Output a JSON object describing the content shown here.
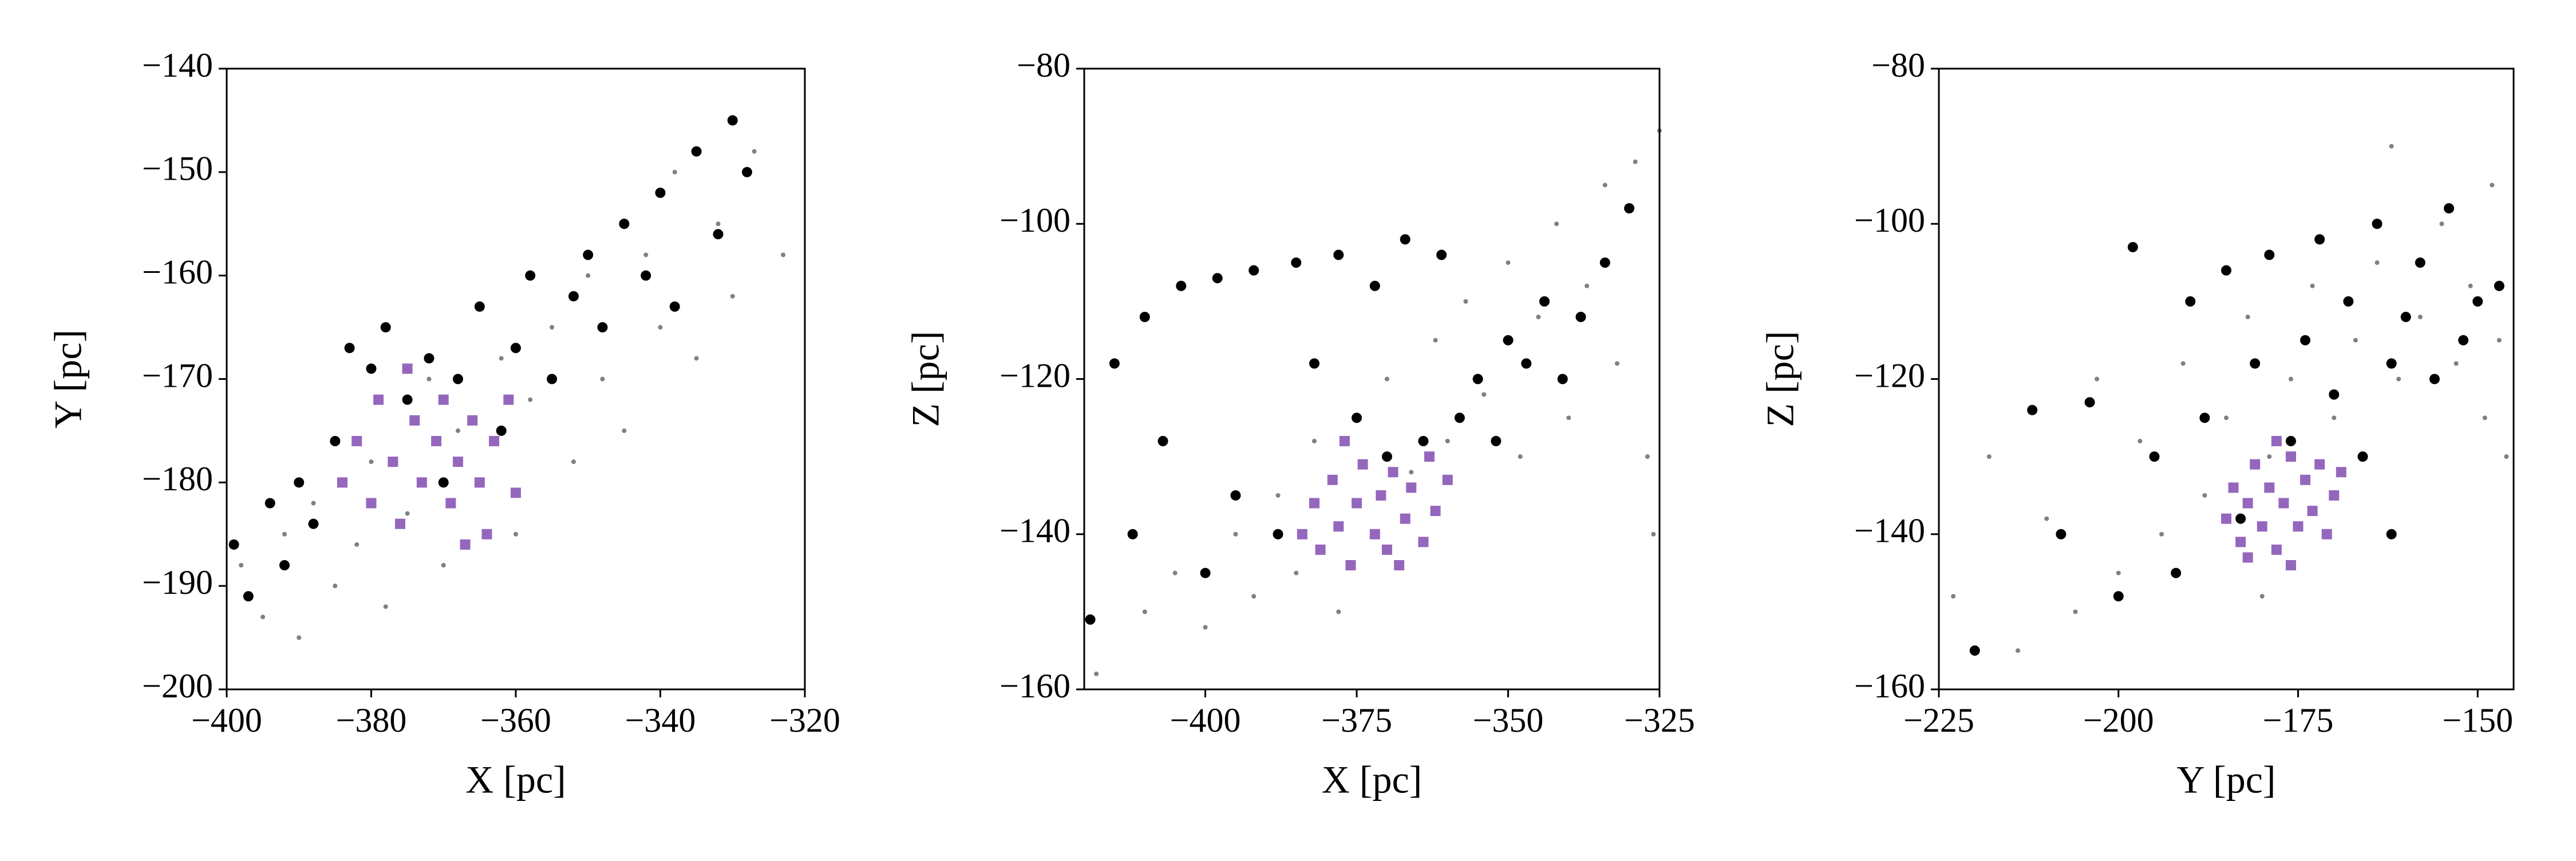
{
  "chart_data": [
    {
      "type": "scatter",
      "xlabel": "X [pc]",
      "ylabel": "Y [pc]",
      "xlim": [
        -400,
        -320
      ],
      "ylim": [
        -200,
        -140
      ],
      "xticks": [
        {
          "value": -400,
          "label": "−400"
        },
        {
          "value": -380,
          "label": "−380"
        },
        {
          "value": -360,
          "label": "−360"
        },
        {
          "value": -340,
          "label": "−340"
        },
        {
          "value": -320,
          "label": "−320"
        }
      ],
      "yticks": [
        {
          "value": -200,
          "label": "−200"
        },
        {
          "value": -190,
          "label": "−190"
        },
        {
          "value": -180,
          "label": "−180"
        },
        {
          "value": -170,
          "label": "−170"
        },
        {
          "value": -160,
          "label": "−160"
        },
        {
          "value": -150,
          "label": "−150"
        },
        {
          "value": -140,
          "label": "−140"
        }
      ],
      "series": [
        {
          "color": "#808080",
          "marker": "dot",
          "x": [
            -398,
            -395,
            -392,
            -390,
            -388,
            -385,
            -382,
            -380,
            -378,
            -375,
            -372,
            -370,
            -368,
            -365,
            -362,
            -360,
            -358,
            -355,
            -352,
            -350,
            -348,
            -345,
            -342,
            -340,
            -338,
            -335,
            -332,
            -330,
            -327,
            -323
          ],
          "y": [
            -188,
            -193,
            -185,
            -195,
            -182,
            -190,
            -186,
            -178,
            -192,
            -183,
            -170,
            -188,
            -175,
            -180,
            -168,
            -185,
            -172,
            -165,
            -178,
            -160,
            -170,
            -175,
            -158,
            -165,
            -150,
            -168,
            -155,
            -162,
            -148,
            -158
          ]
        },
        {
          "color": "#000000",
          "marker": "circle",
          "x": [
            -399,
            -397,
            -394,
            -392,
            -390,
            -388,
            -385,
            -383,
            -380,
            -378,
            -375,
            -372,
            -370,
            -368,
            -365,
            -362,
            -360,
            -358,
            -355,
            -352,
            -350,
            -348,
            -345,
            -342,
            -340,
            -338,
            -335,
            -332,
            -330,
            -328
          ],
          "y": [
            -186,
            -191,
            -182,
            -188,
            -180,
            -184,
            -176,
            -167,
            -169,
            -165,
            -172,
            -168,
            -180,
            -170,
            -163,
            -175,
            -167,
            -160,
            -170,
            -162,
            -158,
            -165,
            -155,
            -160,
            -152,
            -163,
            -148,
            -156,
            -145,
            -150
          ]
        },
        {
          "color": "#9467bd",
          "marker": "square",
          "x": [
            -384,
            -382,
            -380,
            -379,
            -377,
            -376,
            -374,
            -373,
            -371,
            -370,
            -369,
            -368,
            -366,
            -365,
            -364,
            -363,
            -361,
            -360,
            -367,
            -375
          ],
          "y": [
            -180,
            -176,
            -182,
            -172,
            -178,
            -184,
            -174,
            -180,
            -176,
            -172,
            -182,
            -178,
            -174,
            -180,
            -185,
            -176,
            -172,
            -181,
            -186,
            -169
          ]
        }
      ]
    },
    {
      "type": "scatter",
      "xlabel": "X [pc]",
      "ylabel": "Z [pc]",
      "xlim": [
        -420,
        -325
      ],
      "ylim": [
        -160,
        -80
      ],
      "xticks": [
        {
          "value": -400,
          "label": "−400"
        },
        {
          "value": -375,
          "label": "−375"
        },
        {
          "value": -350,
          "label": "−350"
        },
        {
          "value": -325,
          "label": "−325"
        }
      ],
      "yticks": [
        {
          "value": -160,
          "label": "−160"
        },
        {
          "value": -140,
          "label": "−140"
        },
        {
          "value": -120,
          "label": "−120"
        },
        {
          "value": -100,
          "label": "−100"
        },
        {
          "value": -80,
          "label": "−80"
        }
      ],
      "series": [
        {
          "color": "#808080",
          "marker": "dot",
          "x": [
            -418,
            -410,
            -405,
            -400,
            -395,
            -392,
            -388,
            -385,
            -382,
            -378,
            -375,
            -372,
            -370,
            -366,
            -362,
            -360,
            -357,
            -354,
            -350,
            -348,
            -345,
            -342,
            -340,
            -337,
            -334,
            -332,
            -329,
            -327,
            -325,
            -326
          ],
          "y": [
            -158,
            -150,
            -145,
            -152,
            -140,
            -148,
            -135,
            -145,
            -128,
            -150,
            -125,
            -140,
            -120,
            -132,
            -115,
            -128,
            -110,
            -122,
            -105,
            -130,
            -112,
            -100,
            -125,
            -108,
            -95,
            -118,
            -92,
            -130,
            -88,
            -140
          ]
        },
        {
          "color": "#000000",
          "marker": "circle",
          "x": [
            -419,
            -415,
            -412,
            -410,
            -407,
            -404,
            -400,
            -398,
            -395,
            -392,
            -388,
            -385,
            -382,
            -378,
            -375,
            -372,
            -370,
            -367,
            -364,
            -361,
            -358,
            -355,
            -352,
            -350,
            -347,
            -344,
            -341,
            -338,
            -334,
            -330
          ],
          "y": [
            -151,
            -118,
            -140,
            -112,
            -128,
            -108,
            -145,
            -107,
            -135,
            -106,
            -140,
            -105,
            -118,
            -104,
            -125,
            -108,
            -130,
            -102,
            -128,
            -104,
            -125,
            -120,
            -128,
            -115,
            -118,
            -110,
            -120,
            -112,
            -105,
            -98
          ]
        },
        {
          "color": "#9467bd",
          "marker": "square",
          "x": [
            -384,
            -382,
            -381,
            -379,
            -378,
            -376,
            -375,
            -374,
            -372,
            -371,
            -370,
            -369,
            -367,
            -366,
            -364,
            -363,
            -362,
            -360,
            -377,
            -368
          ],
          "y": [
            -140,
            -136,
            -142,
            -133,
            -139,
            -144,
            -136,
            -131,
            -140,
            -135,
            -142,
            -132,
            -138,
            -134,
            -141,
            -130,
            -137,
            -133,
            -128,
            -144
          ]
        }
      ]
    },
    {
      "type": "scatter",
      "xlabel": "Y [pc]",
      "ylabel": "Z [pc]",
      "xlim": [
        -225,
        -145
      ],
      "ylim": [
        -160,
        -80
      ],
      "xticks": [
        {
          "value": -225,
          "label": "−225"
        },
        {
          "value": -200,
          "label": "−200"
        },
        {
          "value": -175,
          "label": "−175"
        },
        {
          "value": -150,
          "label": "−150"
        }
      ],
      "yticks": [
        {
          "value": -160,
          "label": "−160"
        },
        {
          "value": -140,
          "label": "−140"
        },
        {
          "value": -120,
          "label": "−120"
        },
        {
          "value": -100,
          "label": "−100"
        },
        {
          "value": -80,
          "label": "−80"
        }
      ],
      "series": [
        {
          "color": "#808080",
          "marker": "dot",
          "x": [
            -223,
            -218,
            -214,
            -210,
            -206,
            -203,
            -200,
            -197,
            -194,
            -191,
            -188,
            -185,
            -182,
            -179,
            -176,
            -173,
            -170,
            -167,
            -164,
            -161,
            -158,
            -155,
            -153,
            -151,
            -149,
            -148,
            -147,
            -146,
            -162,
            -180
          ],
          "y": [
            -148,
            -130,
            -155,
            -138,
            -150,
            -120,
            -145,
            -128,
            -140,
            -118,
            -135,
            -125,
            -112,
            -130,
            -120,
            -108,
            -125,
            -115,
            -105,
            -120,
            -112,
            -100,
            -118,
            -108,
            -125,
            -95,
            -115,
            -130,
            -90,
            -148
          ]
        },
        {
          "color": "#000000",
          "marker": "circle",
          "x": [
            -220,
            -212,
            -208,
            -204,
            -200,
            -198,
            -195,
            -192,
            -190,
            -188,
            -185,
            -183,
            -181,
            -179,
            -176,
            -174,
            -172,
            -170,
            -168,
            -166,
            -164,
            -162,
            -160,
            -158,
            -156,
            -154,
            -152,
            -150,
            -147,
            -162
          ],
          "y": [
            -155,
            -124,
            -140,
            -123,
            -148,
            -103,
            -130,
            -145,
            -110,
            -125,
            -106,
            -138,
            -118,
            -104,
            -128,
            -115,
            -102,
            -122,
            -110,
            -130,
            -100,
            -118,
            -112,
            -105,
            -120,
            -98,
            -115,
            -110,
            -108,
            -140
          ]
        },
        {
          "color": "#9467bd",
          "marker": "square",
          "x": [
            -185,
            -184,
            -183,
            -182,
            -181,
            -180,
            -179,
            -178,
            -177,
            -176,
            -175,
            -174,
            -173,
            -172,
            -171,
            -170,
            -178,
            -176,
            -182,
            -169
          ],
          "y": [
            -138,
            -134,
            -141,
            -136,
            -131,
            -139,
            -134,
            -142,
            -136,
            -130,
            -139,
            -133,
            -137,
            -131,
            -140,
            -135,
            -128,
            -144,
            -143,
            -132
          ]
        }
      ]
    }
  ]
}
